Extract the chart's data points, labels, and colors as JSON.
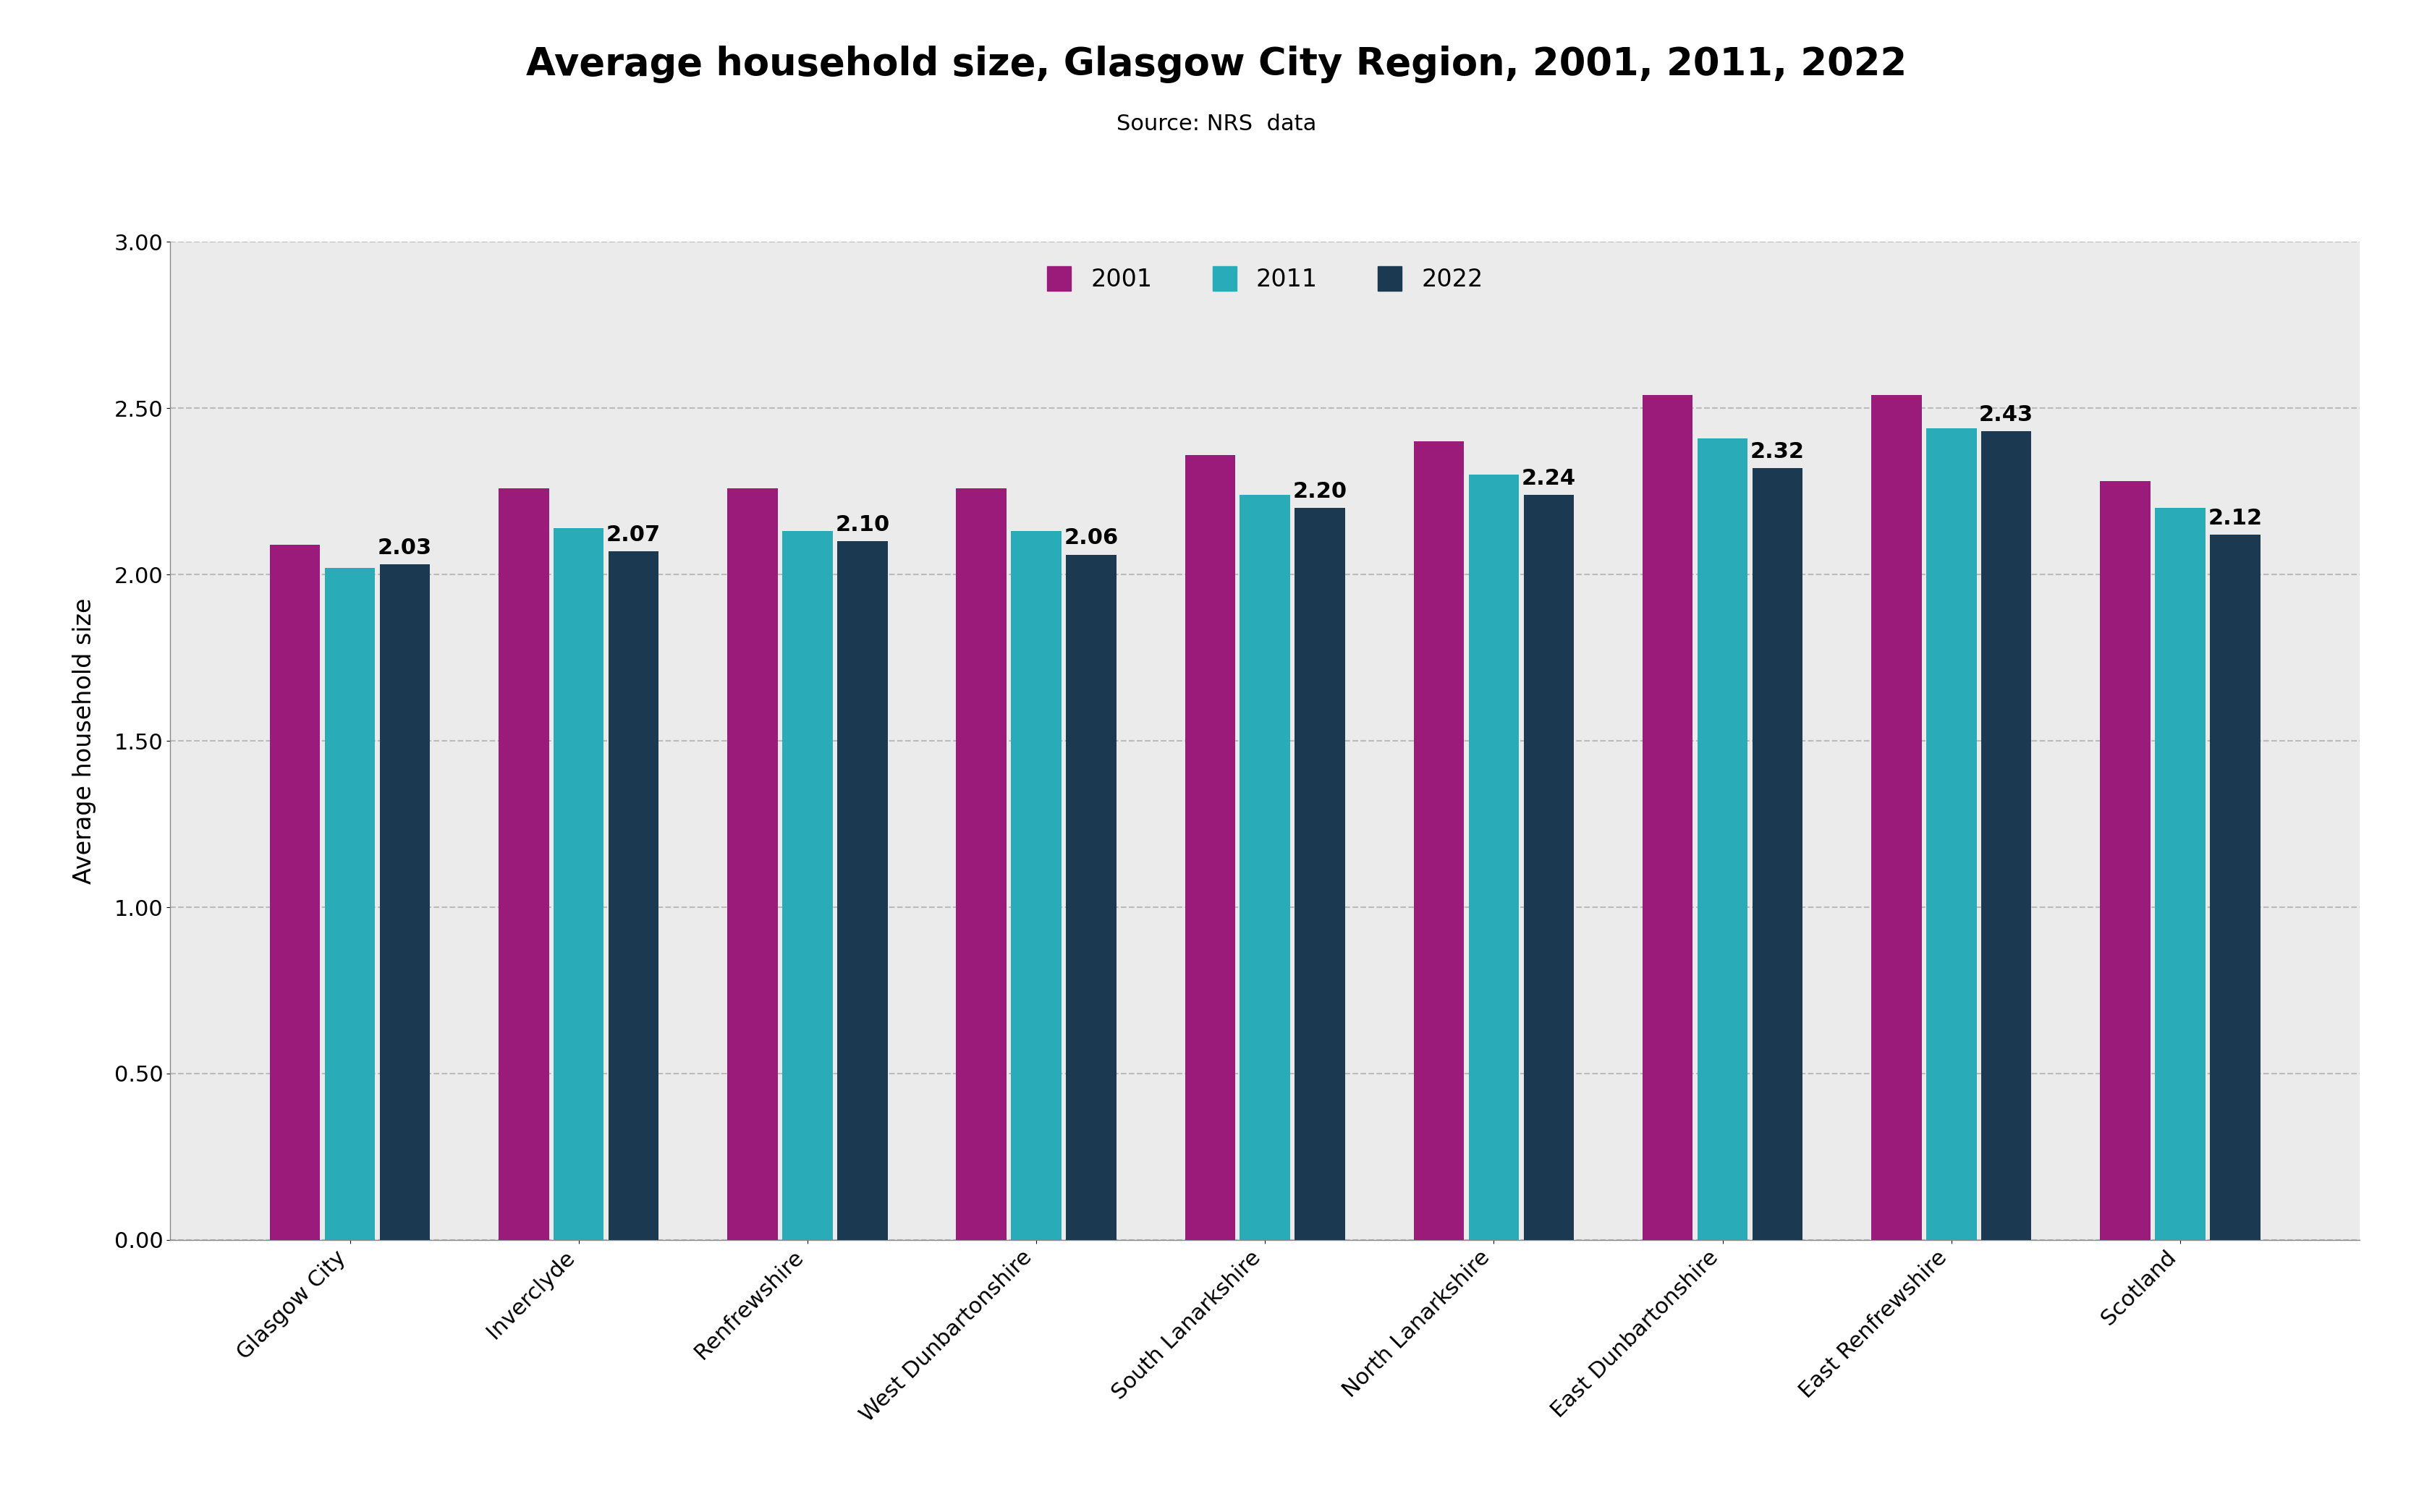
{
  "title": "Average household size, Glasgow City Region, 2001, 2011, 2022",
  "subtitle": "Source: NRS  data",
  "ylabel": "Average household size",
  "categories": [
    "Glasgow City",
    "Inverclyde",
    "Renfrewshire",
    "West Dunbartonshire",
    "South Lanarkshire",
    "North Lanarkshire",
    "East Dunbartonshire",
    "East Renfrewshire",
    "Scotland"
  ],
  "series": {
    "2001": [
      2.09,
      2.26,
      2.26,
      2.26,
      2.36,
      2.4,
      2.54,
      2.54,
      2.28
    ],
    "2011": [
      2.02,
      2.14,
      2.13,
      2.13,
      2.24,
      2.3,
      2.41,
      2.44,
      2.2
    ],
    "2022": [
      2.03,
      2.07,
      2.1,
      2.06,
      2.2,
      2.24,
      2.32,
      2.43,
      2.12
    ]
  },
  "label_values": {
    "2022": [
      2.03,
      2.07,
      2.1,
      2.06,
      2.2,
      2.24,
      2.32,
      2.43,
      2.12
    ]
  },
  "colors": {
    "2001": "#9B1B7B",
    "2011": "#29ABB8",
    "2022": "#1B3A52"
  },
  "ylim": [
    0.0,
    3.0
  ],
  "yticks": [
    0.0,
    0.5,
    1.0,
    1.5,
    2.0,
    2.5,
    3.0
  ],
  "plot_background": "#EBEBEB",
  "figure_background": "#FFFFFF",
  "title_fontsize": 38,
  "subtitle_fontsize": 22,
  "axis_label_fontsize": 24,
  "tick_fontsize": 22,
  "legend_fontsize": 24,
  "bar_label_fontsize": 22,
  "bar_width": 0.22,
  "bar_spacing": 0.24
}
